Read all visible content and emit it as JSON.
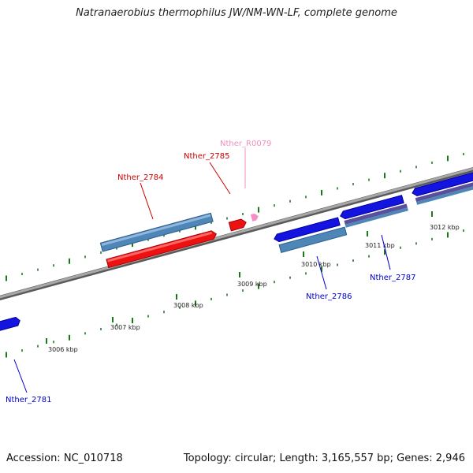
{
  "title": "Natranaerobius thermophilus JW/NM-WN-LF, complete genome",
  "footer": {
    "accession": "Accession: NC_010718",
    "summary": "Topology: circular; Length: 3,165,557 bp; Genes: 2,946"
  },
  "colors": {
    "background": "#ffffff",
    "backbone": "#8c8c8c",
    "backbone_shadow": "#5a5a5a",
    "tick": "#1a7a1a",
    "cds_forward": "#4f86b8",
    "cds_forward_edge": "#2b5e8c",
    "cds_reverse": "#ee1111",
    "cds_reverse_edge": "#a50000",
    "cds_blue": "#1414e0",
    "cds_blue_edge": "#000099",
    "cds_purple": "#5a4f9a",
    "rna": "#f38fc4",
    "label_red": "#cc0000",
    "label_blue": "#0000cc",
    "label_pink": "#f090c0"
  },
  "ticks": [
    {
      "label": "3006 kbp"
    },
    {
      "label": "3007 kbp"
    },
    {
      "label": "3008 kbp"
    },
    {
      "label": "3009 kbp"
    },
    {
      "label": "3010 kbp"
    },
    {
      "label": "3011 kbp"
    },
    {
      "label": "3012 kbp"
    }
  ],
  "genes": [
    {
      "label": "Nther_2784",
      "color": "label_red"
    },
    {
      "label": "Nther_2785",
      "color": "label_red"
    },
    {
      "label": "Nther_R0079",
      "color": "label_pink"
    },
    {
      "label": "Nther_2786",
      "color": "label_blue"
    },
    {
      "label": "Nther_2787",
      "color": "label_blue"
    },
    {
      "label": "Nther_2781",
      "color": "label_blue"
    }
  ]
}
